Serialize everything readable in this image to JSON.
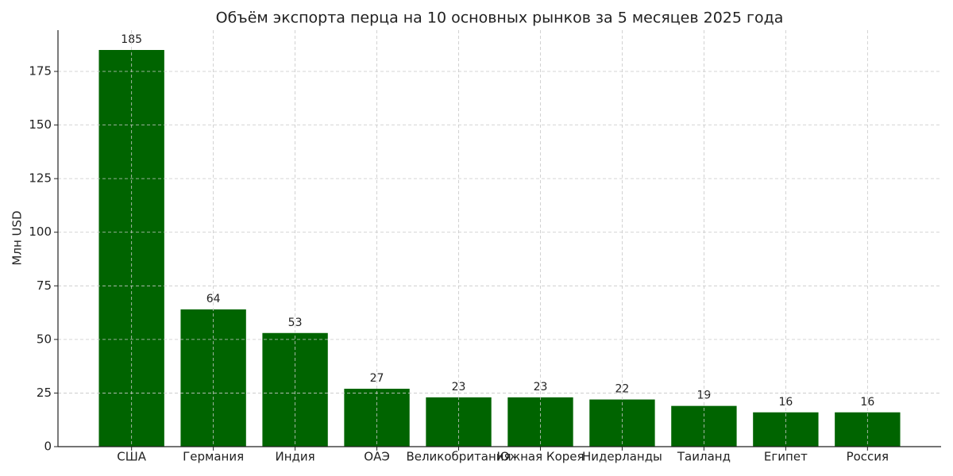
{
  "chart_data": {
    "type": "bar",
    "title": "Объём экспорта перца на 10 основных рынков за 5 месяцев 2025 года",
    "y_label": "Млн USD",
    "categories": [
      "США",
      "Германия",
      "Индия",
      "ОАЭ",
      "Великобритания",
      "Южная Корея",
      "Нидерланды",
      "Таиланд",
      "Египет",
      "Россия"
    ],
    "values": [
      185,
      64,
      53,
      27,
      23,
      23,
      22,
      19,
      16,
      16
    ],
    "color": "#006400",
    "ylim": [
      0,
      194.25
    ],
    "yticks": [
      0,
      25,
      50,
      75,
      100,
      125,
      150,
      175
    ],
    "grid": true
  }
}
